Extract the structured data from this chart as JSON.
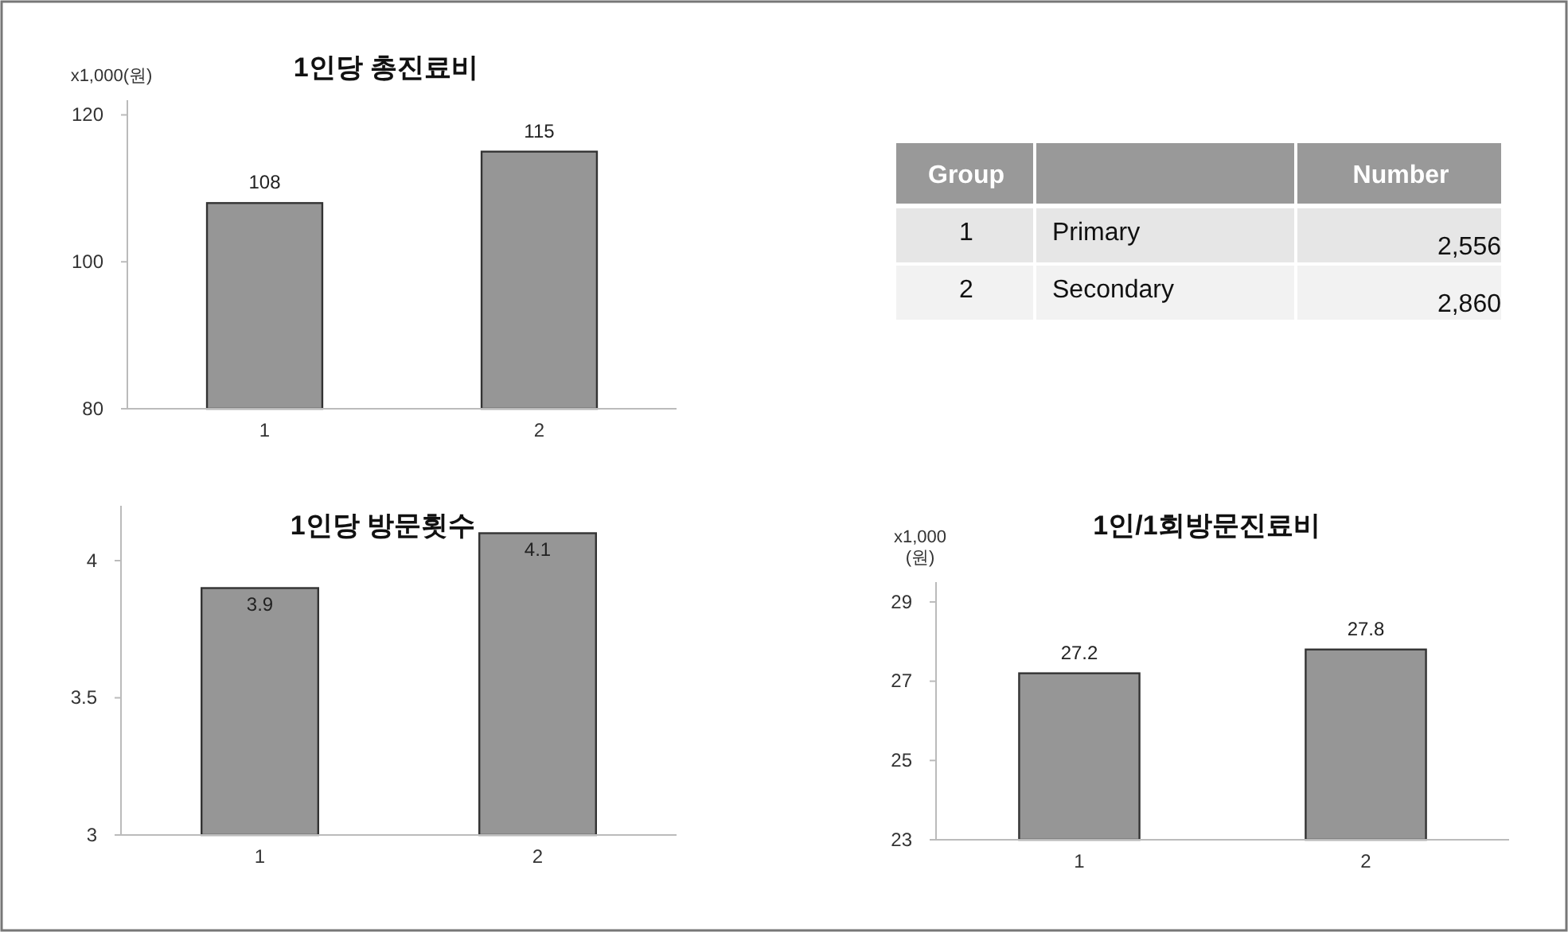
{
  "chart_data": [
    {
      "type": "bar",
      "title": "1인당 총진료비",
      "ylabel": "x1,000(원)",
      "categories": [
        "1",
        "2"
      ],
      "values": [
        108,
        115
      ],
      "color": "#969696",
      "ylim": [
        80,
        122
      ],
      "yticks": [
        80,
        100,
        120
      ],
      "data_labels": true
    },
    {
      "type": "other",
      "annotations": [
        "Group",
        "Number",
        "1",
        "Primary",
        "2,556",
        "2",
        "Secondary",
        "2,860"
      ]
    },
    {
      "type": "bar",
      "title": "1인당 방문횟수",
      "categories": [
        "1",
        "2"
      ],
      "values": [
        3.9,
        4.1
      ],
      "color": "#969696",
      "ylim": [
        3,
        4.2
      ],
      "yticks": [
        3,
        3.5,
        4
      ],
      "data_labels": true
    },
    {
      "type": "bar",
      "title": "1인/1회방문진료비",
      "ylabel": "x1,000 (원)",
      "categories": [
        "1",
        "2"
      ],
      "values": [
        27.2,
        27.8
      ],
      "color": "#969696",
      "ylim": [
        23,
        29.5
      ],
      "yticks": [
        23,
        25,
        27,
        29
      ],
      "data_labels": true
    }
  ]
}
